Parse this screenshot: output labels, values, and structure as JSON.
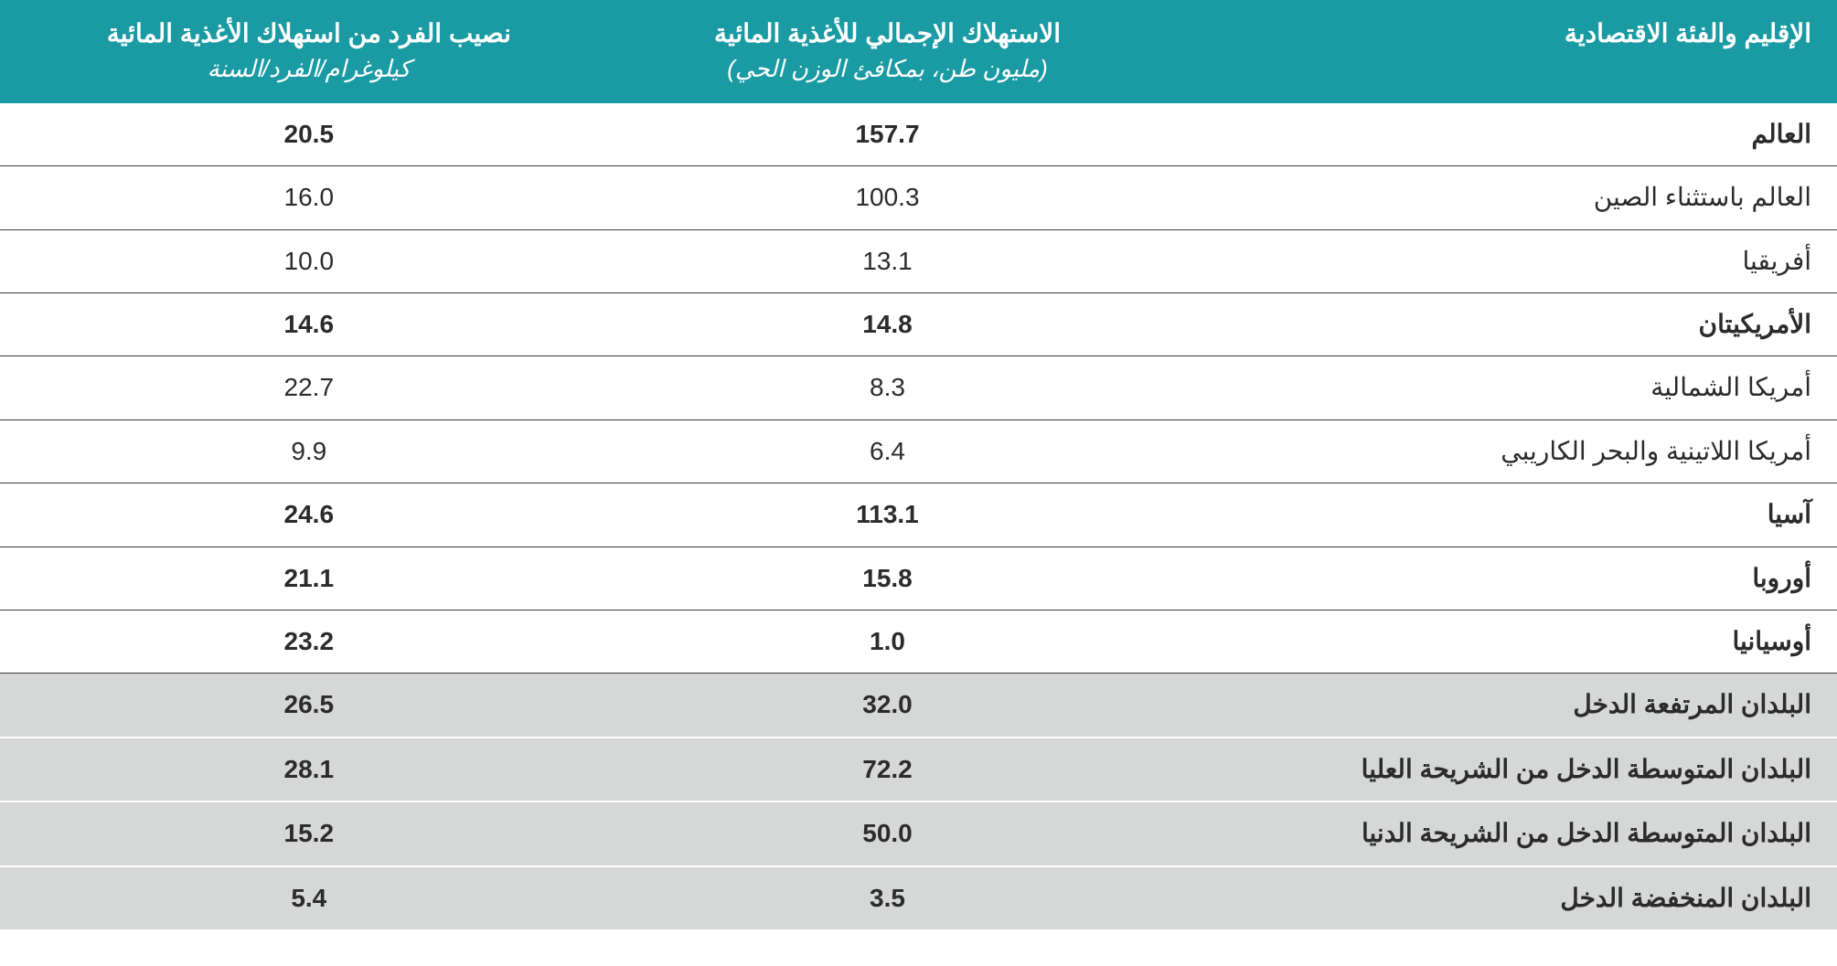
{
  "table": {
    "type": "table",
    "header": {
      "region_col": "الإقليم والفئة الاقتصادية",
      "total_col": "الاستهلاك الإجمالي للأغذية المائية",
      "total_sub": "(مليون طن، بمكافئ الوزن الحي)",
      "percapita_col": "نصيب الفرد من استهلاك الأغذية المائية",
      "percapita_sub": "كيلوغرام/الفرد/السنة"
    },
    "colors": {
      "header_bg": "#1a9ba3",
      "header_text": "#ffffff",
      "row_border": "#3a3a3a",
      "shaded_bg": "#d6d7d7",
      "body_text": "#2b2b2b",
      "page_bg": "#ffffff"
    },
    "font": {
      "header_size_pt": 21,
      "header_sub_size_pt": 19,
      "body_size_pt": 21
    },
    "rows": [
      {
        "region": "العالم",
        "total": "157.7",
        "percap": "20.5",
        "bold": true,
        "shaded": false
      },
      {
        "region": "العالم باستثناء الصين",
        "total": "100.3",
        "percap": "16.0",
        "bold": false,
        "shaded": false
      },
      {
        "region": "أفريقيا",
        "total": "13.1",
        "percap": "10.0",
        "bold": false,
        "shaded": false
      },
      {
        "region": "الأمريكيتان",
        "total": "14.8",
        "percap": "14.6",
        "bold": true,
        "shaded": false
      },
      {
        "region": "أمريكا الشمالية",
        "total": "8.3",
        "percap": "22.7",
        "bold": false,
        "shaded": false
      },
      {
        "region": "أمريكا اللاتينية والبحر الكاريبي",
        "total": "6.4",
        "percap": "9.9",
        "bold": false,
        "shaded": false
      },
      {
        "region": "آسيا",
        "total": "113.1",
        "percap": "24.6",
        "bold": true,
        "shaded": false
      },
      {
        "region": "أوروبا",
        "total": "15.8",
        "percap": "21.1",
        "bold": true,
        "shaded": false
      },
      {
        "region": "أوسيانيا",
        "total": "1.0",
        "percap": "23.2",
        "bold": true,
        "shaded": false
      },
      {
        "region": "البلدان المرتفعة الدخل",
        "total": "32.0",
        "percap": "26.5",
        "bold": true,
        "shaded": true
      },
      {
        "region": "البلدان المتوسطة الدخل من الشريحة العليا",
        "total": "72.2",
        "percap": "28.1",
        "bold": true,
        "shaded": true
      },
      {
        "region": "البلدان المتوسطة الدخل من الشريحة الدنيا",
        "total": "50.0",
        "percap": "15.2",
        "bold": true,
        "shaded": true
      },
      {
        "region": "البلدان المنخفضة الدخل",
        "total": "3.5",
        "percap": "5.4",
        "bold": true,
        "shaded": true
      }
    ]
  }
}
